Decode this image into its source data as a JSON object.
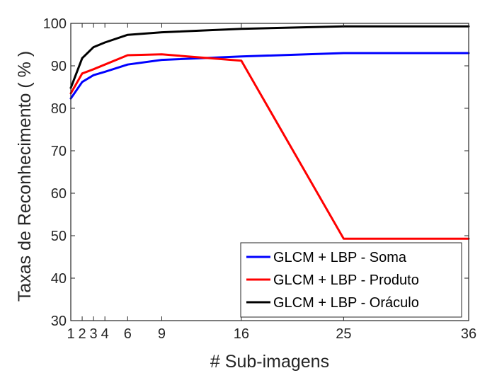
{
  "chart_data": {
    "type": "line",
    "title": "",
    "xlabel": "# Sub-imagens",
    "ylabel": "Taxas de Reconhecimento ( % )",
    "xlim": [
      1,
      36
    ],
    "ylim": [
      30,
      100
    ],
    "xticks": [
      1,
      2,
      3,
      4,
      6,
      9,
      16,
      25,
      36
    ],
    "xtick_labels": [
      "1",
      "2",
      "3",
      "4",
      "6",
      "9",
      "16",
      "25",
      "36"
    ],
    "yticks": [
      30,
      40,
      50,
      60,
      70,
      80,
      90,
      100
    ],
    "ytick_labels": [
      "30",
      "40",
      "50",
      "60",
      "70",
      "80",
      "90",
      "100"
    ],
    "grid": false,
    "legend_position": "bottom-right",
    "x": [
      1,
      2,
      3,
      4,
      6,
      9,
      16,
      25,
      36
    ],
    "series": [
      {
        "name": "GLCM + LBP - Soma",
        "color": "#0000ff",
        "values": [
          82.3,
          86.2,
          87.8,
          88.6,
          90.3,
          91.4,
          92.2,
          93.0,
          93.0
        ]
      },
      {
        "name": "GLCM + LBP - Produto",
        "color": "#ff0000",
        "values": [
          83.5,
          88.2,
          89.2,
          90.3,
          92.5,
          92.7,
          91.2,
          49.3,
          49.3
        ]
      },
      {
        "name": "GLCM + LBP - Oráculo",
        "color": "#000000",
        "values": [
          84.8,
          91.8,
          94.4,
          95.5,
          97.3,
          97.9,
          98.7,
          99.3,
          99.3
        ]
      }
    ]
  }
}
